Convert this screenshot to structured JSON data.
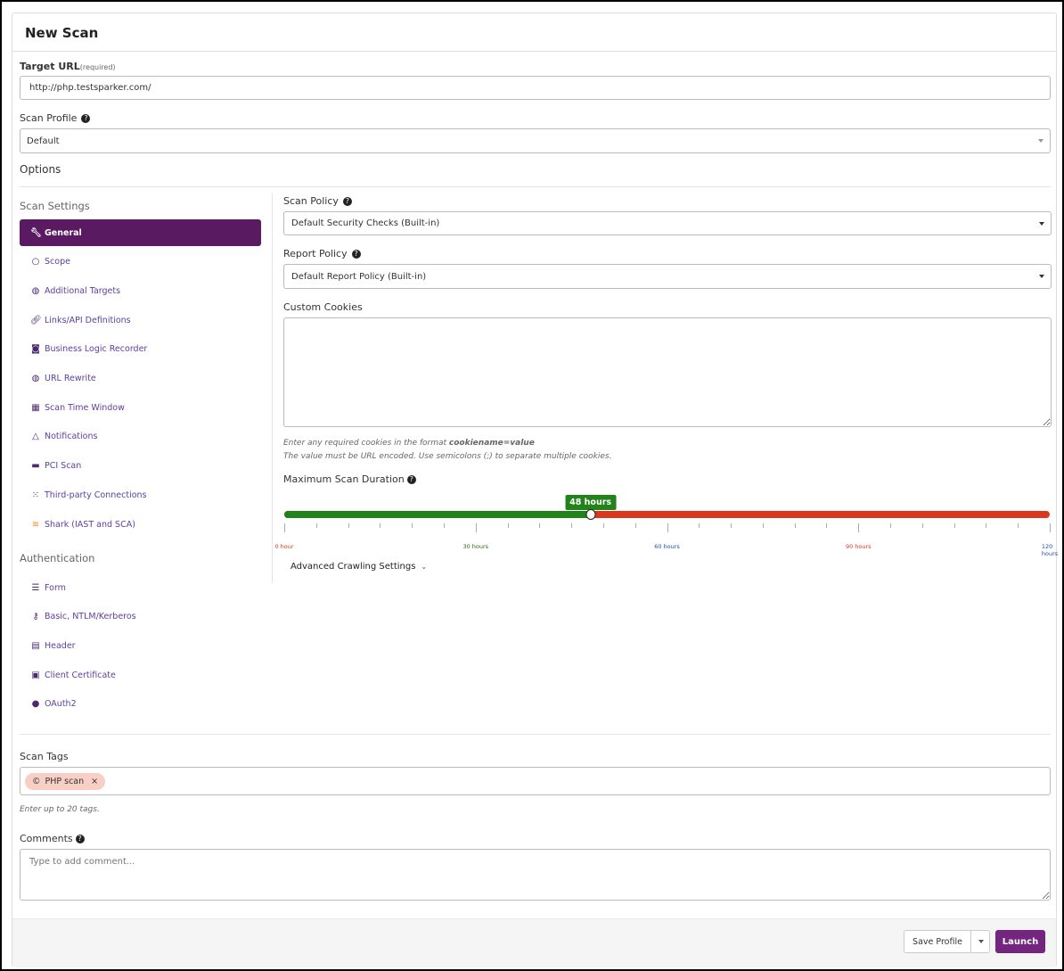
{
  "title": "New Scan",
  "target_url": {
    "label": "Target URL",
    "required": "(required)",
    "value": "http://php.testsparker.com/"
  },
  "scan_profile": {
    "label": "Scan Profile",
    "value": "Default"
  },
  "options_label": "Options",
  "scan_settings": {
    "heading": "Scan Settings",
    "items": [
      {
        "label": "General",
        "icon": "wrench-icon",
        "active": true
      },
      {
        "label": "Scope",
        "icon": "circle-icon"
      },
      {
        "label": "Additional Targets",
        "icon": "globe-plus-icon"
      },
      {
        "label": "Links/API Definitions",
        "icon": "link-icon"
      },
      {
        "label": "Business Logic Recorder",
        "icon": "record-icon"
      },
      {
        "label": "URL Rewrite",
        "icon": "globe-edit-icon"
      },
      {
        "label": "Scan Time Window",
        "icon": "calendar-icon"
      },
      {
        "label": "Notifications",
        "icon": "bell-icon"
      },
      {
        "label": "PCI Scan",
        "icon": "pci-icon"
      },
      {
        "label": "Third-party Connections",
        "icon": "dots-icon"
      },
      {
        "label": "Shark (IAST and SCA)",
        "icon": "shark-icon"
      }
    ]
  },
  "authentication": {
    "heading": "Authentication",
    "items": [
      {
        "label": "Form",
        "icon": "form-icon"
      },
      {
        "label": "Basic, NTLM/Kerberos",
        "icon": "key-icon"
      },
      {
        "label": "Header",
        "icon": "header-icon"
      },
      {
        "label": "Client Certificate",
        "icon": "certificate-icon"
      },
      {
        "label": "OAuth2",
        "icon": "oauth-icon"
      }
    ]
  },
  "scan_policy": {
    "label": "Scan Policy",
    "value": "Default Security Checks (Built-in)"
  },
  "report_policy": {
    "label": "Report Policy",
    "value": "Default Report Policy (Built-in)"
  },
  "custom_cookies": {
    "label": "Custom Cookies",
    "value": "",
    "hint1": "Enter any required cookies in the format ",
    "hint1_bold": "cookiename=value",
    "hint2": "The value must be URL encoded. Use semicolons (;) to separate multiple cookies."
  },
  "max_duration": {
    "label": "Maximum Scan Duration",
    "value_hours": 48,
    "max_hours": 120,
    "value_label": "48 hours",
    "ticks": [
      {
        "label": "0 hour",
        "value": 0,
        "color": "#d9381e"
      },
      {
        "label": "30 hours",
        "value": 30,
        "color": "#2a6b12"
      },
      {
        "label": "60 hours",
        "value": 60,
        "color": "#1f4fb0"
      },
      {
        "label": "90 hours",
        "value": 90,
        "color": "#d9381e"
      },
      {
        "label": "120 hours",
        "value": 120,
        "color": "#1f4fb0"
      }
    ],
    "colors": {
      "fill": "#22831a",
      "rest": "#d9381e"
    }
  },
  "advanced_crawling": "Advanced Crawling Settings",
  "scan_tags": {
    "label": "Scan Tags",
    "tags": [
      "PHP scan"
    ],
    "hint": "Enter up to 20 tags."
  },
  "comments": {
    "label": "Comments",
    "placeholder": "Type to add comment..."
  },
  "footer": {
    "save_profile": "Save Profile",
    "launch": "Launch"
  },
  "colors": {
    "accent": "#5a1a62",
    "launch": "#74257f"
  }
}
